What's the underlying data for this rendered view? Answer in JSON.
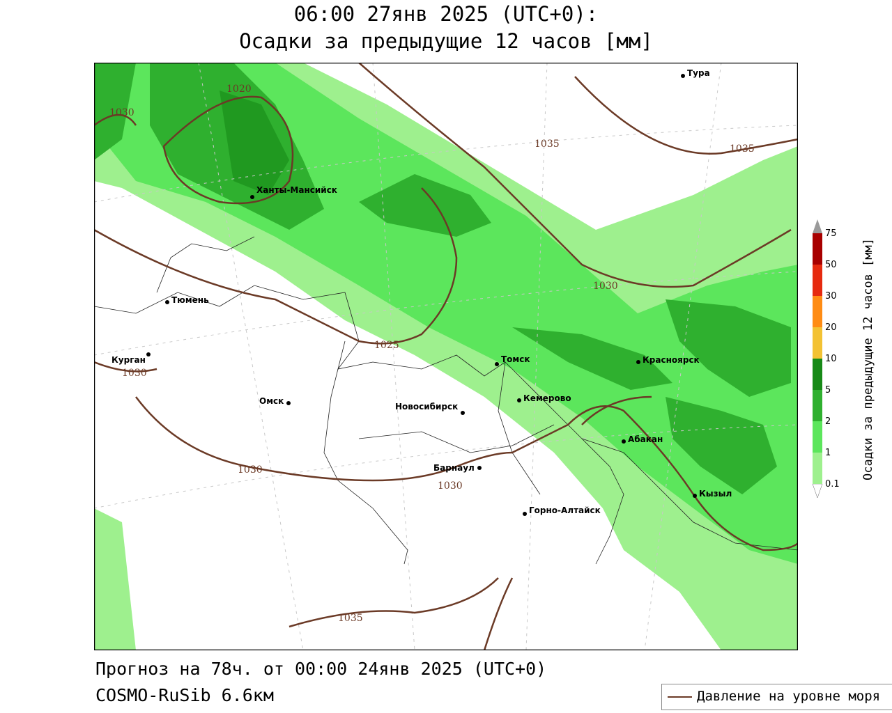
{
  "title_line1": "06:00 27янв 2025 (UTC+0):",
  "title_line2": "Осадки за предыдущие 12 часов [мм]",
  "footer_line1": "Прогноз на 78ч. от 00:00 24янв 2025 (UTC+0)",
  "footer_line2": "COSMO-RuSib 6.6км",
  "legend_line_label": "Давление на уровне моря",
  "colorbar": {
    "title": "Осадки за предыдущие 12 часов [мм]",
    "levels": [
      "0.1",
      "1",
      "2",
      "5",
      "10",
      "20",
      "30",
      "50",
      "75"
    ],
    "colors": [
      "#ffffff",
      "#9ef08e",
      "#5ce65c",
      "#2fb02f",
      "#178a17",
      "#f3c233",
      "#ff8c14",
      "#e62a0f",
      "#a80000",
      "#9a9a9a"
    ]
  },
  "cities": [
    {
      "name": "Тура"
    },
    {
      "name": "Ханты-Мансийск"
    },
    {
      "name": "Тюмень"
    },
    {
      "name": "Курган"
    },
    {
      "name": "Омск"
    },
    {
      "name": "Новосибирск"
    },
    {
      "name": "Томск"
    },
    {
      "name": "Кемерово"
    },
    {
      "name": "Красноярск"
    },
    {
      "name": "Абакан"
    },
    {
      "name": "Барнаул"
    },
    {
      "name": "Горно-Алтайск"
    },
    {
      "name": "Кызыл"
    }
  ],
  "isobar_labels": [
    "1020",
    "1030",
    "1035",
    "1035",
    "1030",
    "1025",
    "1030",
    "1030",
    "1030",
    "1035"
  ],
  "colors": {
    "isobar": "#6b3a26",
    "light_green": "#9ef08e",
    "mid_green": "#5ce65c",
    "dark_green": "#2fb02f",
    "darkest_green": "#178a17"
  }
}
